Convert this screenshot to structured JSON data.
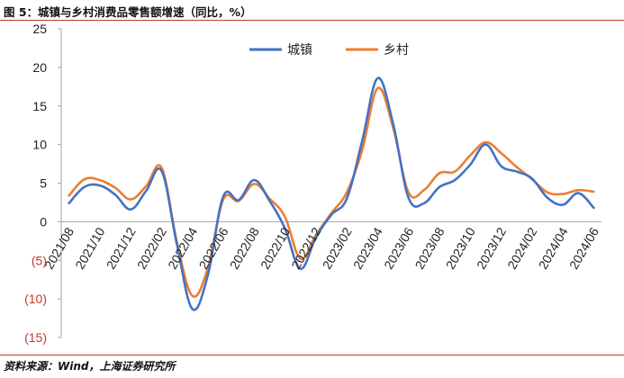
{
  "title": "图 5：城镇与乡村消费品零售额增速（同比，%）",
  "source": "资料来源：Wind，上海证券研究所",
  "chart_data": {
    "type": "line",
    "title": "",
    "xlabel": "",
    "ylabel": "",
    "ylim": [
      -15,
      25
    ],
    "y_ticks": [
      25,
      20,
      15,
      10,
      5,
      0,
      -5,
      -10,
      -15
    ],
    "y_tick_labels": [
      "25",
      "20",
      "15",
      "10",
      "5",
      "0",
      "(5)",
      "(10)",
      "(15)"
    ],
    "negative_label_color": "#c0392b",
    "grid": false,
    "legend_position": "top",
    "x": [
      "2021/08",
      "2021/09",
      "2021/10",
      "2021/11",
      "2021/12",
      "2022/01",
      "2022/02",
      "2022/03",
      "2022/04",
      "2022/05",
      "2022/06",
      "2022/07",
      "2022/08",
      "2022/09",
      "2022/10",
      "2022/11",
      "2022/12",
      "2023/01",
      "2023/02",
      "2023/03",
      "2023/04",
      "2023/05",
      "2023/06",
      "2023/07",
      "2023/08",
      "2023/09",
      "2023/10",
      "2023/11",
      "2023/12",
      "2024/01",
      "2024/02",
      "2024/03",
      "2024/04",
      "2024/05",
      "2024/06"
    ],
    "x_tick_labels": [
      "2021/08",
      "2021/10",
      "2021/12",
      "2022/02",
      "2022/04",
      "2022/06",
      "2022/08",
      "2022/10",
      "2022/12",
      "2023/02",
      "2023/04",
      "2023/06",
      "2023/08",
      "2023/10",
      "2023/12",
      "2024/02",
      "2024/04",
      "2024/06"
    ],
    "series": [
      {
        "name": "城镇",
        "color": "#4472c4",
        "values": [
          2.4,
          4.5,
          4.7,
          3.5,
          1.6,
          4.0,
          6.6,
          -3.0,
          -11.3,
          -6.9,
          3.3,
          2.8,
          5.4,
          2.7,
          -0.9,
          -6.1,
          -2.0,
          0.9,
          3.0,
          10.5,
          18.6,
          12.7,
          3.1,
          2.4,
          4.5,
          5.4,
          7.4,
          10.0,
          7.2,
          6.5,
          5.6,
          3.1,
          2.2,
          3.7,
          1.8
        ]
      },
      {
        "name": "乡村",
        "color": "#ed7d31",
        "values": [
          3.4,
          5.5,
          5.4,
          4.4,
          2.9,
          4.6,
          7.0,
          -2.7,
          -9.6,
          -6.0,
          2.9,
          2.7,
          4.9,
          3.0,
          0.6,
          -4.8,
          -1.7,
          1.1,
          3.8,
          9.3,
          17.3,
          12.2,
          3.8,
          4.1,
          6.3,
          6.5,
          8.6,
          10.3,
          8.9,
          7.1,
          5.5,
          3.8,
          3.6,
          4.1,
          3.9
        ]
      }
    ]
  }
}
